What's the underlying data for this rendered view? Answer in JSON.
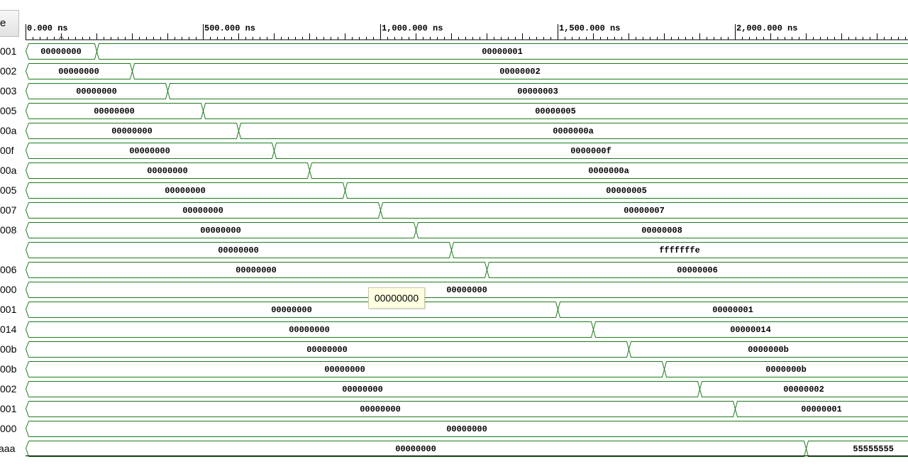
{
  "header": {
    "button_label": "e"
  },
  "timeline": {
    "ticks": [
      {
        "time_ns": 0,
        "label": "0.000 ns"
      },
      {
        "time_ns": 500,
        "label": "500.000 ns"
      },
      {
        "time_ns": 1000,
        "label": "1,000.000 ns"
      },
      {
        "time_ns": 1500,
        "label": "1,500.000 ns"
      },
      {
        "time_ns": 2000,
        "label": "2,000.000 ns"
      }
    ],
    "cursor_ns": 100
  },
  "colors": {
    "wave": "#1b7a1b",
    "ruler": "#000000",
    "tooltip_bg": "#ffffe1"
  },
  "signals": [
    {
      "name": "001",
      "initial": "00000000",
      "change_ns": 200,
      "final": "00000001"
    },
    {
      "name": "002",
      "initial": "00000000",
      "change_ns": 300,
      "final": "00000002"
    },
    {
      "name": "003",
      "initial": "00000000",
      "change_ns": 400,
      "final": "00000003"
    },
    {
      "name": "005",
      "initial": "00000000",
      "change_ns": 500,
      "final": "00000005"
    },
    {
      "name": "00a",
      "initial": "00000000",
      "change_ns": 600,
      "final": "0000000a"
    },
    {
      "name": "00f",
      "initial": "00000000",
      "change_ns": 700,
      "final": "0000000f"
    },
    {
      "name": "00a",
      "initial": "00000000",
      "change_ns": 800,
      "final": "0000000a"
    },
    {
      "name": "005",
      "initial": "00000000",
      "change_ns": 900,
      "final": "00000005"
    },
    {
      "name": "007",
      "initial": "00000000",
      "change_ns": 1000,
      "final": "00000007"
    },
    {
      "name": "008",
      "initial": "00000000",
      "change_ns": 1100,
      "final": "00000008"
    },
    {
      "name": "",
      "initial": "00000000",
      "change_ns": 1200,
      "final": "fffffffe"
    },
    {
      "name": "006",
      "initial": "00000000",
      "change_ns": 1300,
      "final": "00000006"
    },
    {
      "name": "000",
      "initial": "00000000",
      "change_ns": null,
      "final": null
    },
    {
      "name": "001",
      "initial": "00000000",
      "change_ns": 1500,
      "final": "00000001"
    },
    {
      "name": "014",
      "initial": "00000000",
      "change_ns": 1600,
      "final": "00000014"
    },
    {
      "name": "00b",
      "initial": "00000000",
      "change_ns": 1700,
      "final": "0000000b"
    },
    {
      "name": "00b",
      "initial": "00000000",
      "change_ns": 1800,
      "final": "0000000b"
    },
    {
      "name": "002",
      "initial": "00000000",
      "change_ns": 1900,
      "final": "00000002"
    },
    {
      "name": "001",
      "initial": "00000000",
      "change_ns": 2000,
      "final": "00000001"
    },
    {
      "name": "000",
      "initial": "00000000",
      "change_ns": null,
      "final": null
    },
    {
      "name": "aaa",
      "initial": "00000000",
      "change_ns": 2200,
      "final": "55555555"
    }
  ],
  "tooltip": {
    "text": "00000000"
  }
}
